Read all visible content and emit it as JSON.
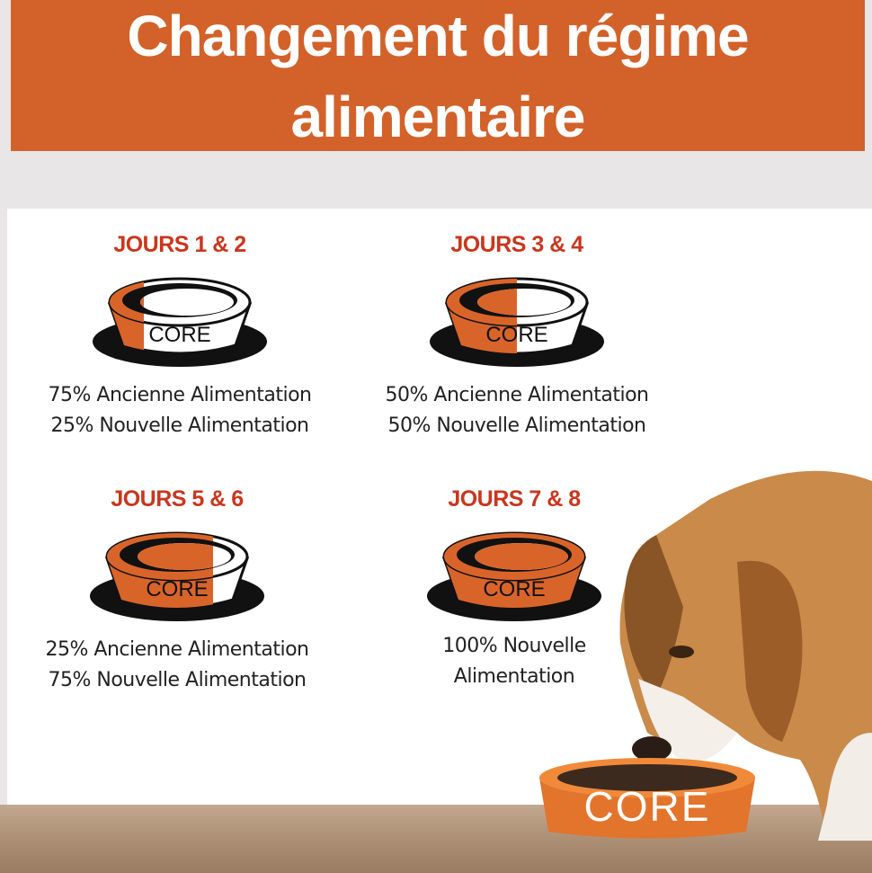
{
  "header": {
    "title_line1": "Changement du régime",
    "title_line2": "alimentaire"
  },
  "colors": {
    "banner": "#d2622a",
    "heading": "#c9361e",
    "bowl_orange": "#d9642a"
  },
  "bowl_brand": "CORE",
  "steps": [
    {
      "title": "JOURS 1 & 2",
      "new_fraction": 0.25,
      "line1": "75% Ancienne Alimentation",
      "line2": "25% Nouvelle Alimentation"
    },
    {
      "title": "JOURS 3 & 4",
      "new_fraction": 0.5,
      "line1": "50% Ancienne Alimentation",
      "line2": "50% Nouvelle Alimentation"
    },
    {
      "title": "JOURS 5 & 6",
      "new_fraction": 0.75,
      "line1": "25% Ancienne Alimentation",
      "line2": "75% Nouvelle Alimentation"
    },
    {
      "title": "JOURS 7 & 8",
      "new_fraction": 1.0,
      "line1": "100% Nouvelle",
      "line2": "Alimentation"
    }
  ],
  "photo": {
    "bowl_brand": "CORE"
  }
}
